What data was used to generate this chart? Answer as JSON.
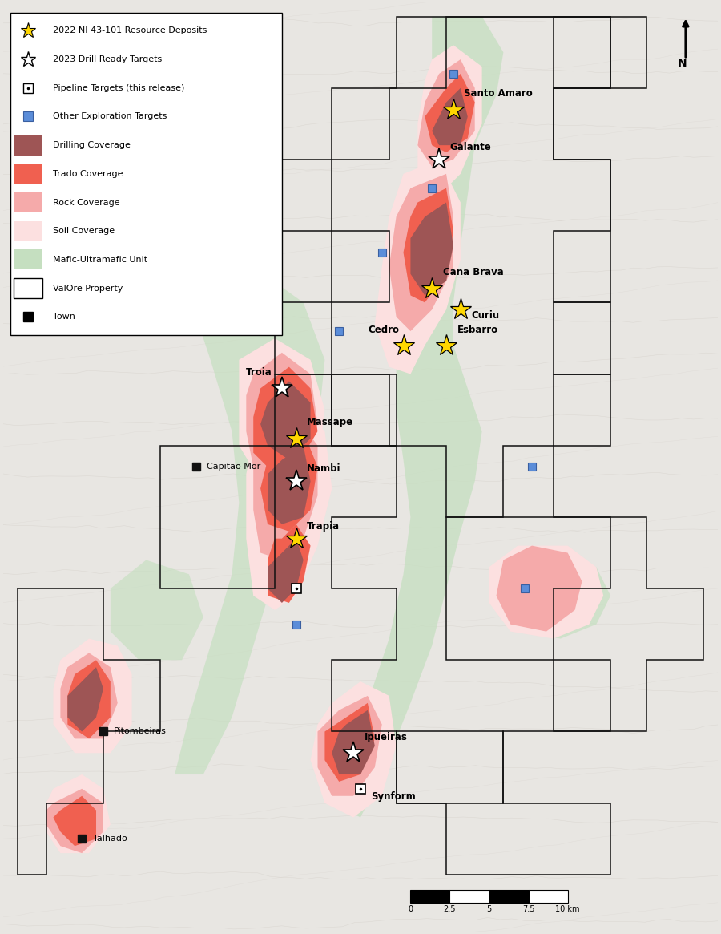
{
  "figsize": [
    9.0,
    11.65
  ],
  "bg_color": "#e8e6e2",
  "map_bg": "#e8e5e0",
  "colors": {
    "drilling": "#9e5555",
    "trado": "#f06050",
    "rock": "#f5aaaa",
    "soil": "#fce0e0",
    "mafic": "#c5dfc0",
    "prop_edge": "#111111"
  },
  "xlim": [
    0,
    100
  ],
  "ylim": [
    0,
    130
  ]
}
